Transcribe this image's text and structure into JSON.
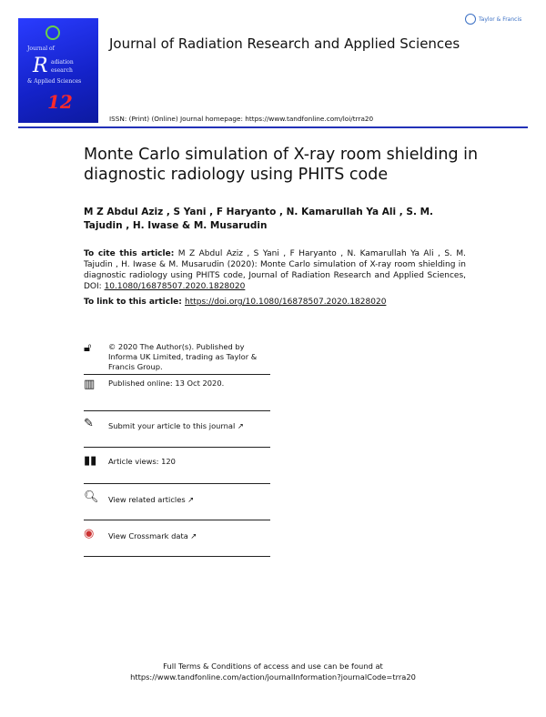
{
  "header": {
    "journal_title": "Journal of Radiation Research and Applied Sciences",
    "issn_line": "ISSN: (Print) (Online) Journal homepage: ",
    "homepage_url": "https://www.tandfonline.com/loi/trra20",
    "publisher_logo_text": "Taylor & Francis",
    "cover": {
      "lines": [
        "Journal of",
        "adiation",
        "esearch",
        "& Applied Sciences"
      ],
      "big_letter": "R",
      "volume": "12"
    },
    "accent_color": "#2231b8"
  },
  "article": {
    "title": "Monte Carlo simulation of X-ray room shielding in diagnostic radiology using PHITS code",
    "authors": "M Z Abdul Aziz , S Yani , F Haryanto , N. Kamarullah Ya Ali , S. M. Tajudin , H. Iwase & M. Musarudin",
    "cite_label": "To cite this article:",
    "cite_text": " M Z Abdul Aziz , S Yani , F Haryanto , N. Kamarullah Ya Ali , S. M. Tajudin , H. Iwase & M. Musarudin (2020): Monte Carlo simulation of X-ray room shielding in diagnostic radiology using PHITS code, Journal of Radiation Research and Applied Sciences, DOI: ",
    "cite_doi": "10.1080/16878507.2020.1828020",
    "link_label": "To link to this article: ",
    "link_url": "https://doi.org/10.1080/16878507.2020.1828020"
  },
  "info_rows": [
    {
      "icon": "open-access-lock-icon",
      "text": "© 2020 The Author(s). Published by Informa UK Limited, trading as Taylor & Francis Group."
    },
    {
      "icon": "calendar-icon",
      "text": "Published online: 13 Oct 2020."
    },
    {
      "icon": "edit-icon",
      "text": "Submit your article to this journal ↗"
    },
    {
      "icon": "bar-chart-icon",
      "text": "Article views: 120"
    },
    {
      "icon": "search-document-icon",
      "text": "View related articles ↗"
    },
    {
      "icon": "crossmark-icon",
      "text": "View Crossmark data ↗"
    }
  ],
  "footer": {
    "line1": "Full Terms & Conditions of access and use can be found at",
    "line2": "https://www.tandfonline.com/action/journalInformation?journalCode=trra20"
  }
}
